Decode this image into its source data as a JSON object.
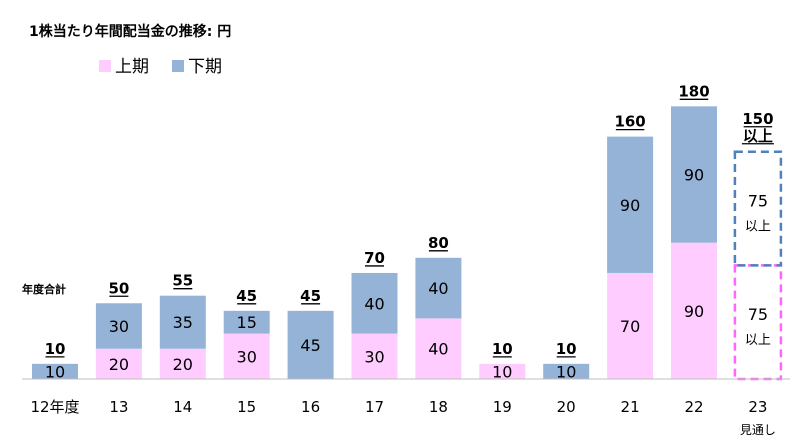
{
  "chart_data": {
    "type": "bar",
    "title": "1株当たり年間配当金の推移: 円",
    "stacked": true,
    "categories": [
      "12年度",
      "13",
      "14",
      "15",
      "16",
      "17",
      "18",
      "19",
      "20",
      "21",
      "22",
      "23"
    ],
    "series": [
      {
        "name": "上期",
        "color": "#ffccff",
        "values": [
          0,
          20,
          20,
          30,
          0,
          30,
          40,
          10,
          0,
          70,
          90,
          75
        ]
      },
      {
        "name": "下期",
        "color": "#95b3d7",
        "values": [
          10,
          30,
          35,
          15,
          45,
          40,
          40,
          0,
          10,
          90,
          90,
          75
        ]
      }
    ],
    "totals": [
      "10",
      "50",
      "55",
      "45",
      "45",
      "70",
      "80",
      "10",
      "10",
      "160",
      "180",
      "150"
    ],
    "forecast": {
      "category": "23",
      "note": "見通し",
      "total_suffix": "以上",
      "segment_suffix": "以上",
      "upper_color": "#4f81bd",
      "lower_color": "#ff66ff"
    },
    "total_row_label": "年度合計",
    "ylim": [
      0,
      190
    ],
    "legend_position": "top-left",
    "grid": false
  }
}
